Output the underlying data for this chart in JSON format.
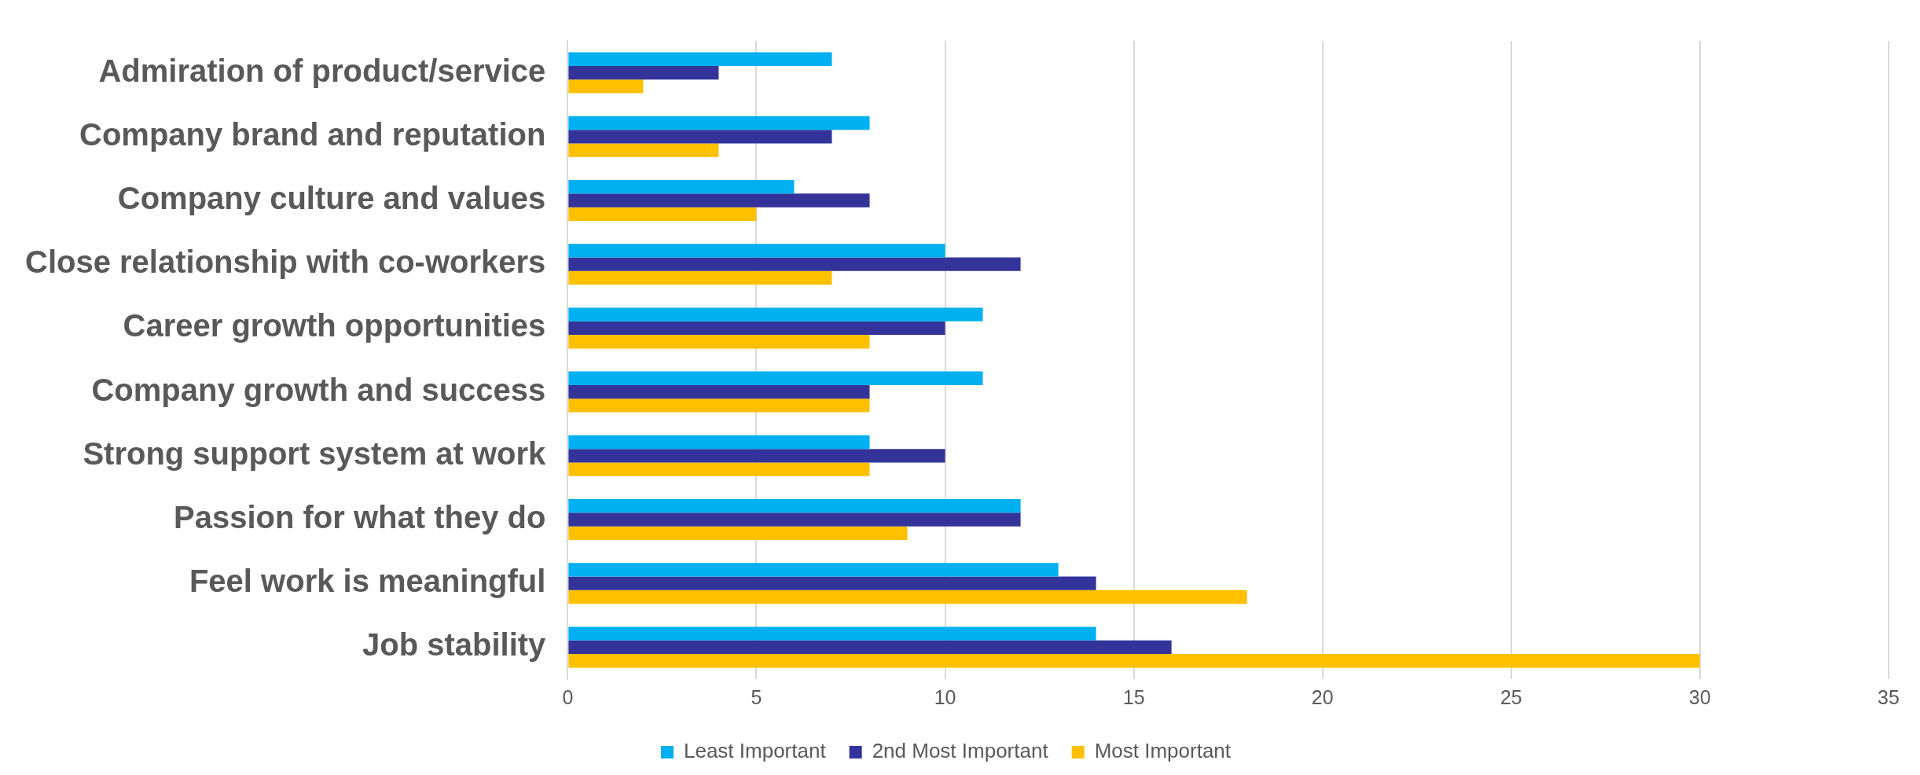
{
  "chart_data": {
    "type": "bar",
    "orientation": "horizontal",
    "categories": [
      "Admiration of product/service",
      "Company brand and reputation",
      "Company culture and values",
      "Close relationship with co-workers",
      "Career growth opportunities",
      "Company growth and success",
      "Strong support system at work",
      "Passion for what they do",
      "Feel work is meaningful",
      "Job stability"
    ],
    "series": [
      {
        "name": "Least Important",
        "color": "#00b0f0",
        "values": [
          7,
          8,
          6,
          10,
          11,
          11,
          8,
          12,
          13,
          14
        ]
      },
      {
        "name": "2nd Most Important",
        "color": "#333399",
        "values": [
          4,
          7,
          8,
          12,
          10,
          8,
          10,
          12,
          14,
          16
        ]
      },
      {
        "name": "Most Important",
        "color": "#ffc000",
        "values": [
          2,
          4,
          5,
          7,
          8,
          8,
          8,
          9,
          18,
          30
        ]
      }
    ],
    "xlim": [
      0,
      35
    ],
    "xticks": [
      0,
      5,
      10,
      15,
      20,
      25,
      30,
      35
    ],
    "grid": "x",
    "legend": "bottom"
  }
}
